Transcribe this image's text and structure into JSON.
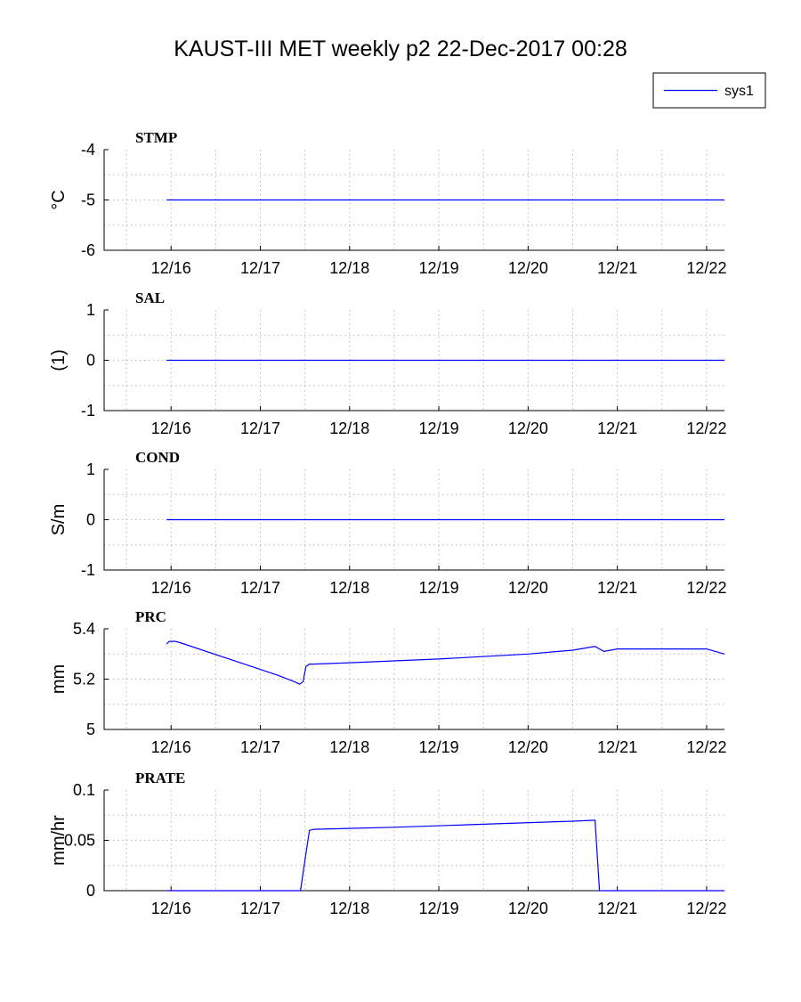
{
  "page_title": "KAUST-III MET weekly p2 22-Dec-2017 00:28",
  "legend": {
    "label": "sys1",
    "color": "#0000ff"
  },
  "chart_data": [
    {
      "type": "line",
      "panel_label": "STMP",
      "ylabel": "°C",
      "ylim": [
        -6,
        -4
      ],
      "yticks": [
        -6,
        -5,
        -4
      ],
      "ytick_labels": [
        "-6",
        "-5",
        "-4"
      ],
      "xlim": [
        15.25,
        22.2
      ],
      "xticks": [
        16,
        17,
        18,
        19,
        20,
        21,
        22
      ],
      "xtick_labels": [
        "12/16",
        "12/17",
        "12/18",
        "12/19",
        "12/20",
        "12/21",
        "12/22"
      ],
      "grid": true,
      "series": [
        {
          "name": "sys1",
          "x": [
            15.95,
            22.2
          ],
          "y": [
            -5,
            -5
          ]
        }
      ]
    },
    {
      "type": "line",
      "panel_label": "SAL",
      "ylabel": "(1)",
      "ylim": [
        -1,
        1
      ],
      "yticks": [
        -1,
        0,
        1
      ],
      "ytick_labels": [
        "-1",
        "0",
        "1"
      ],
      "xlim": [
        15.25,
        22.2
      ],
      "xticks": [
        16,
        17,
        18,
        19,
        20,
        21,
        22
      ],
      "xtick_labels": [
        "12/16",
        "12/17",
        "12/18",
        "12/19",
        "12/20",
        "12/21",
        "12/22"
      ],
      "grid": true,
      "series": [
        {
          "name": "sys1",
          "x": [
            15.95,
            22.2
          ],
          "y": [
            0,
            0
          ]
        }
      ]
    },
    {
      "type": "line",
      "panel_label": "COND",
      "ylabel": "S/m",
      "ylim": [
        -1,
        1
      ],
      "yticks": [
        -1,
        0,
        1
      ],
      "ytick_labels": [
        "-1",
        "0",
        "1"
      ],
      "xlim": [
        15.25,
        22.2
      ],
      "xticks": [
        16,
        17,
        18,
        19,
        20,
        21,
        22
      ],
      "xtick_labels": [
        "12/16",
        "12/17",
        "12/18",
        "12/19",
        "12/20",
        "12/21",
        "12/22"
      ],
      "grid": true,
      "series": [
        {
          "name": "sys1",
          "x": [
            15.95,
            22.2
          ],
          "y": [
            0,
            0
          ]
        }
      ]
    },
    {
      "type": "line",
      "panel_label": "PRC",
      "ylabel": "mm",
      "ylim": [
        5,
        5.4
      ],
      "yticks": [
        5,
        5.2,
        5.4
      ],
      "ytick_labels": [
        "5",
        "5.2",
        "5.4"
      ],
      "xlim": [
        15.25,
        22.2
      ],
      "xticks": [
        16,
        17,
        18,
        19,
        20,
        21,
        22
      ],
      "xtick_labels": [
        "12/16",
        "12/17",
        "12/18",
        "12/19",
        "12/20",
        "12/21",
        "12/22"
      ],
      "grid": true,
      "series": [
        {
          "name": "sys1",
          "x": [
            15.95,
            15.98,
            16.05,
            16.1,
            17.2,
            17.38,
            17.44,
            17.48,
            17.51,
            17.55,
            17.6,
            18.0,
            19.0,
            20.0,
            20.5,
            20.75,
            20.8,
            20.85,
            21.0,
            21.5,
            22.0,
            22.1,
            22.2
          ],
          "y": [
            5.34,
            5.35,
            5.35,
            5.345,
            5.215,
            5.19,
            5.18,
            5.19,
            5.25,
            5.26,
            5.26,
            5.265,
            5.28,
            5.3,
            5.315,
            5.33,
            5.32,
            5.31,
            5.32,
            5.32,
            5.32,
            5.31,
            5.3
          ]
        }
      ]
    },
    {
      "type": "line",
      "panel_label": "PRATE",
      "ylabel": "mm/hr",
      "ylim": [
        0,
        0.1
      ],
      "yticks": [
        0,
        0.05,
        0.1
      ],
      "ytick_labels": [
        "0",
        "0.05",
        "0.1"
      ],
      "xlim": [
        15.25,
        22.2
      ],
      "xticks": [
        16,
        17,
        18,
        19,
        20,
        21,
        22
      ],
      "xtick_labels": [
        "12/16",
        "12/17",
        "12/18",
        "12/19",
        "12/20",
        "12/21",
        "12/22"
      ],
      "grid": true,
      "series": [
        {
          "name": "sys1",
          "x": [
            15.95,
            17.45,
            17.5,
            17.55,
            17.6,
            18.5,
            19.5,
            20.5,
            20.75,
            20.8,
            22.2
          ],
          "y": [
            0,
            0,
            0.03,
            0.06,
            0.061,
            0.063,
            0.066,
            0.069,
            0.07,
            0,
            0
          ]
        }
      ]
    }
  ]
}
